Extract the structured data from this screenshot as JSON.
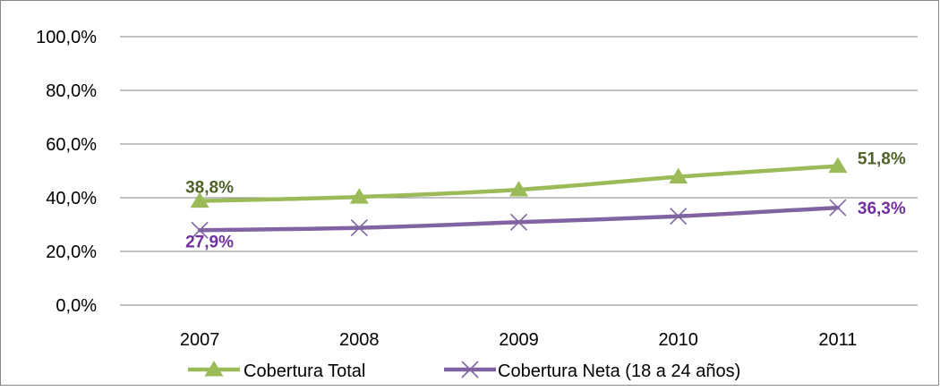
{
  "colors": {
    "series_total": "#9BBB59",
    "series_neta": "#8064A2",
    "label_total": "#4F6228",
    "label_neta": "#7030A0",
    "grid": "#868686",
    "axis_text": "#000000",
    "frame": "#868686"
  },
  "chart_data": {
    "type": "line",
    "title": "",
    "xlabel": "",
    "ylabel": "",
    "categories": [
      "2007",
      "2008",
      "2009",
      "2010",
      "2011"
    ],
    "ylim": [
      0,
      100
    ],
    "y_ticks": [
      0,
      20,
      40,
      60,
      80,
      100
    ],
    "y_tick_labels": [
      "0,0%",
      "20,0%",
      "40,0%",
      "60,0%",
      "80,0%",
      "100,0%"
    ],
    "grid": true,
    "legend_position": "bottom",
    "series": [
      {
        "name": "Cobertura Total",
        "values": [
          38.8,
          40.3,
          43.0,
          47.8,
          51.8
        ],
        "marker": "triangle",
        "data_labels": [
          "38,8%",
          "",
          "",
          "",
          "51,8%"
        ]
      },
      {
        "name": "Cobertura Neta (18 a 24 años)",
        "values": [
          27.9,
          28.8,
          30.9,
          33.1,
          36.3
        ],
        "marker": "x",
        "data_labels": [
          "27,9%",
          "",
          "",
          "",
          "36,3%"
        ]
      }
    ]
  }
}
